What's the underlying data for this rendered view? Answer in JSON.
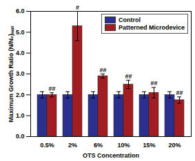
{
  "chart_data": {
    "type": "bar",
    "x_label": "OTS Concentration",
    "y_label": "Maximum Growth Ratio (N/N₀)ₘₐₓ",
    "categories": [
      "0.5%",
      "2%",
      "6%",
      "10%",
      "15%",
      "20%"
    ],
    "series": [
      {
        "name": "Control",
        "color": "#2b2f8f",
        "values": [
          2.0,
          2.0,
          2.0,
          2.0,
          2.0,
          2.0
        ],
        "errors": [
          0.15,
          0.15,
          0.15,
          0.15,
          0.15,
          0.15
        ]
      },
      {
        "name": "Patterned Microdevice",
        "color": "#a11d21",
        "values": [
          2.0,
          5.3,
          2.9,
          2.5,
          2.1,
          1.75
        ],
        "errors": [
          0.1,
          0.7,
          0.1,
          0.2,
          0.25,
          0.15
        ],
        "annotations": [
          "##",
          "#",
          "##",
          "##",
          "##",
          "##"
        ]
      }
    ],
    "ylim": [
      0,
      6
    ],
    "yticks": [
      0,
      1,
      2,
      3,
      4,
      5,
      6
    ],
    "legend": "top-right"
  }
}
